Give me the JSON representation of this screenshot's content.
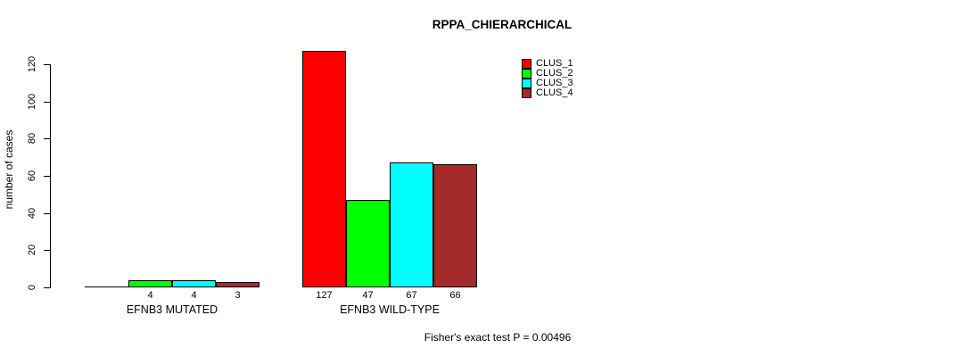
{
  "chart_data": {
    "type": "bar",
    "title": "RPPA_CHIERARCHICAL",
    "categories": [
      "EFNB3 MUTATED",
      "EFNB3 WILD-TYPE"
    ],
    "series": [
      {
        "name": "CLUS_1",
        "color": "#FF0000",
        "values": [
          0,
          127
        ]
      },
      {
        "name": "CLUS_2",
        "color": "#00FF00",
        "values": [
          4,
          47
        ]
      },
      {
        "name": "CLUS_3",
        "color": "#00FFFF",
        "values": [
          4,
          67
        ]
      },
      {
        "name": "CLUS_4",
        "color": "#A52A2A",
        "values": [
          3,
          66
        ]
      }
    ],
    "bar_labels": [
      [
        "",
        "4",
        "4",
        "3"
      ],
      [
        "127",
        "47",
        "67",
        "66"
      ]
    ],
    "xlabel": "",
    "ylabel": "number of cases",
    "ylim": [
      0,
      120
    ],
    "yticks": [
      0,
      20,
      40,
      60,
      80,
      100,
      120
    ],
    "grid": false,
    "legend_position": "top-right",
    "annotation": "Fisher's exact test P = 0.00496",
    "axis_color": "#000000",
    "background_color": "#ffffff"
  }
}
